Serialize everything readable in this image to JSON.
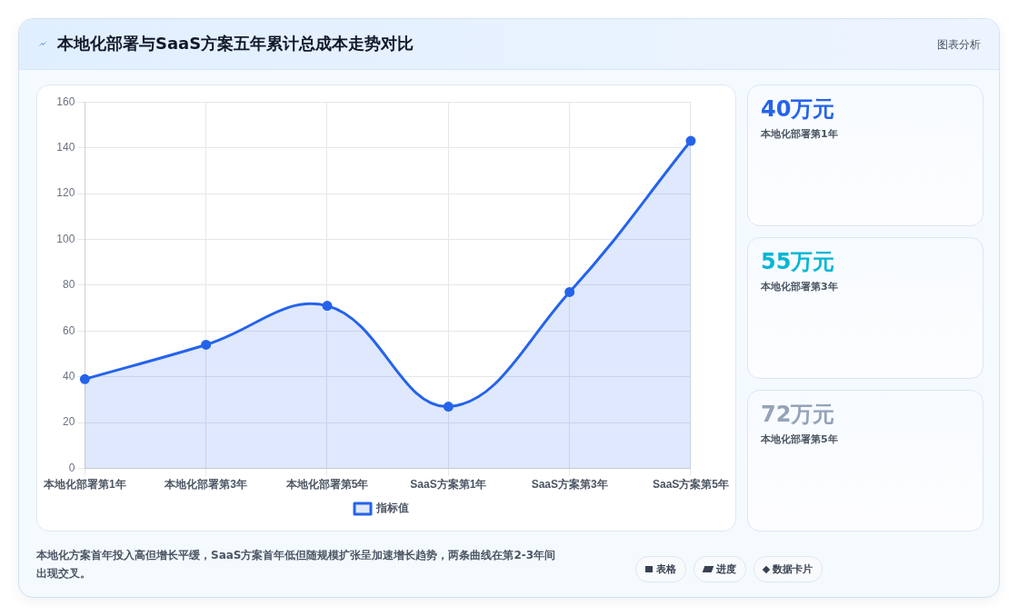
{
  "chart_data": {
    "type": "area",
    "title": "本地化部署与SaaS方案五年累计总成本走势对比",
    "categories": [
      "本地化部署第1年",
      "本地化部署第3年",
      "本地化部署第5年",
      "SaaS方案第1年",
      "SaaS方案第3年",
      "SaaS方案第5年"
    ],
    "series": [
      {
        "name": "指标值",
        "color": "#2563eb",
        "values": [
          39,
          54,
          71,
          27,
          77,
          143
        ]
      }
    ],
    "ylim": [
      0,
      160
    ],
    "yticks": [
      0,
      20,
      40,
      60,
      80,
      100,
      120,
      140,
      160
    ],
    "grid": true,
    "legend": "bottom",
    "marker": "circle",
    "line_style": "solid",
    "annotations": [
      "40万元",
      "本地化部署第1年",
      "55万元",
      "本地化部署第3年",
      "72万元",
      "本地化部署第5年",
      "本地化方案首年投入高但增长平缓，SaaS方案首年低但随规模扩张呈加速增长趋势，两条曲线在第2-3年间出现交叉。",
      "图表分析",
      "表格",
      "进度",
      "数据卡片"
    ]
  }
}
